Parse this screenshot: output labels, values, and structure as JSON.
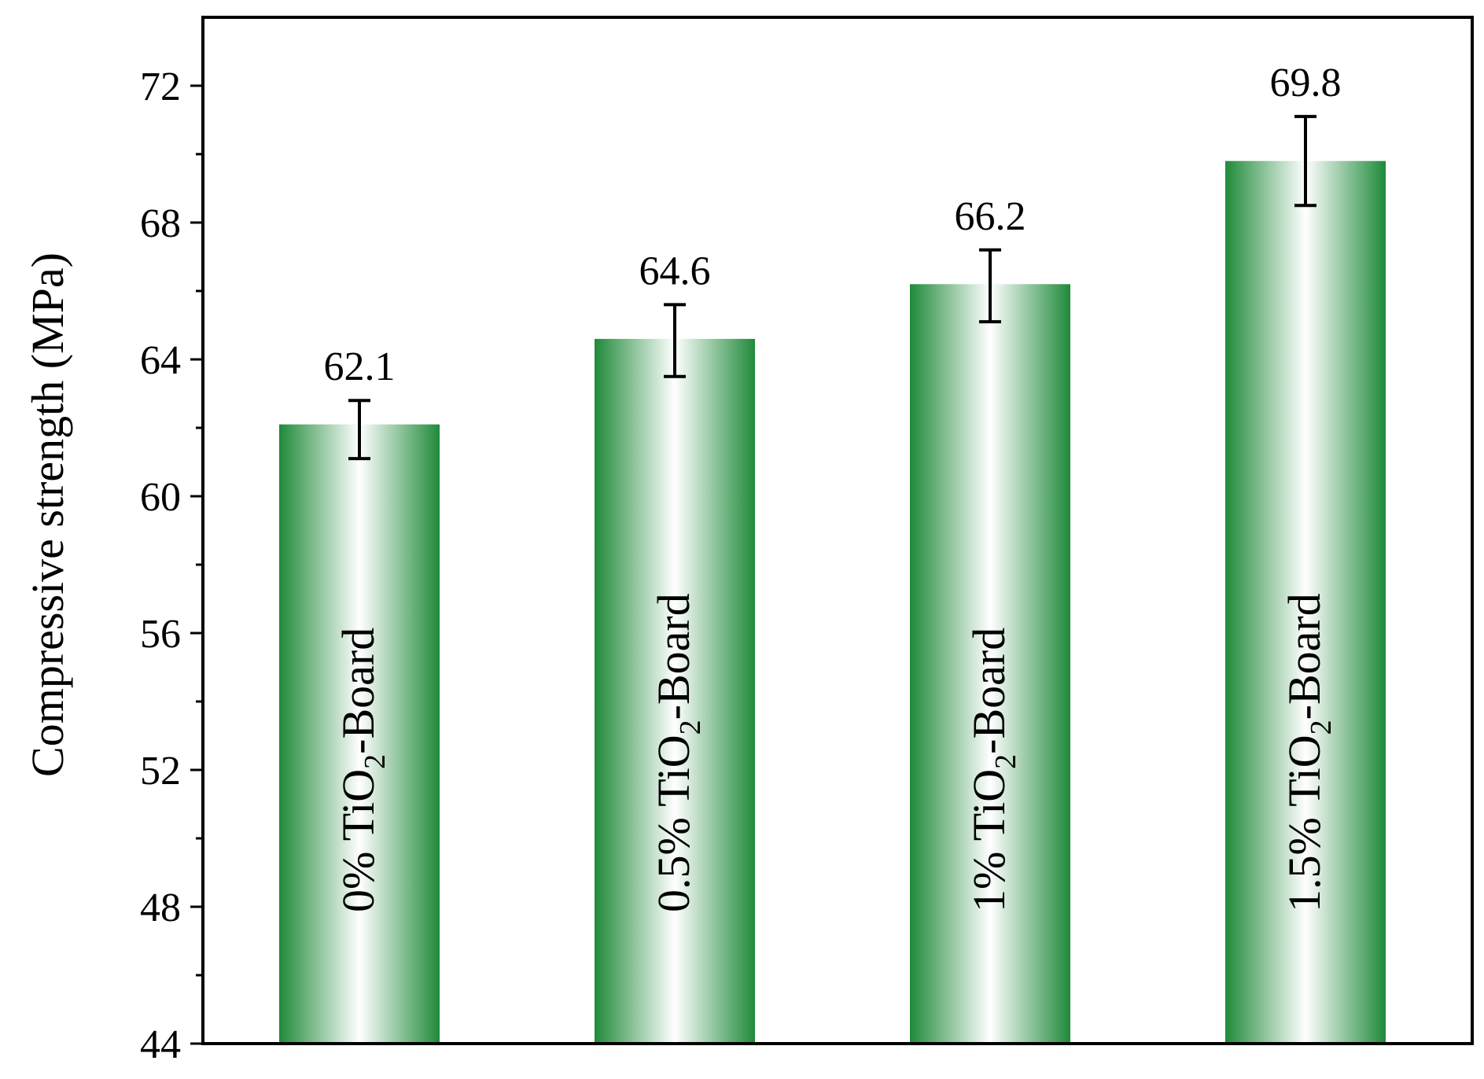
{
  "chart_data": {
    "type": "bar",
    "categories": [
      "0% TiO2-Board",
      "0.5% TiO2-Board",
      "1% TiO2-Board",
      "1.5% TiO2-Board"
    ],
    "category_labels": [
      {
        "prefix": "0% TiO",
        "subscript": "2",
        "suffix": "-Board"
      },
      {
        "prefix": "0.5% TiO",
        "subscript": "2",
        "suffix": "-Board"
      },
      {
        "prefix": "1% TiO",
        "subscript": "2",
        "suffix": "-Board"
      },
      {
        "prefix": "1.5% TiO",
        "subscript": "2",
        "suffix": "-Board"
      }
    ],
    "values": [
      62.1,
      64.6,
      66.2,
      69.8
    ],
    "value_labels": [
      "62.1",
      "64.6",
      "66.2",
      "69.8"
    ],
    "error_bars": [
      {
        "low": 61.1,
        "high": 62.8
      },
      {
        "low": 63.5,
        "high": 65.6
      },
      {
        "low": 65.1,
        "high": 67.2
      },
      {
        "low": 68.5,
        "high": 71.1
      }
    ],
    "title": "",
    "xlabel": "",
    "ylabel": "Compressive strength (MPa)",
    "ylim": [
      44,
      74
    ],
    "yticks": [
      44,
      48,
      52,
      56,
      60,
      64,
      68,
      72
    ],
    "grid": false,
    "legend": "none",
    "bar_color": "#1f8a3a",
    "bar_highlight_color": "#ffffff"
  }
}
